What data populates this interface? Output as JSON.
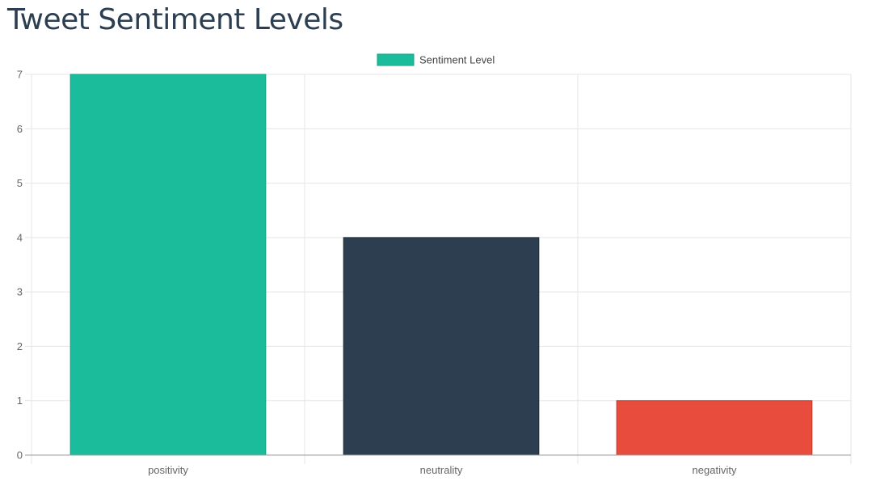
{
  "page": {
    "title": "Tweet Sentiment Levels"
  },
  "chart_data": {
    "type": "bar",
    "categories": [
      "positivity",
      "neutrality",
      "negativity"
    ],
    "series": [
      {
        "name": "Sentiment Level",
        "values": [
          7,
          4,
          1
        ],
        "colors": [
          "#1abc9c",
          "#2c3e50",
          "#e74c3c"
        ],
        "border_colors": [
          "#16a085",
          "#1f2d3a",
          "#c0392b"
        ]
      }
    ],
    "legend": {
      "label": "Sentiment Level",
      "position": "top-center",
      "color": "#1abc9c",
      "border_color": "#16a085"
    },
    "y_ticks": [
      "0",
      "1",
      "2",
      "3",
      "4",
      "5",
      "6",
      "7"
    ],
    "ylim": [
      0,
      7
    ],
    "xlabel": "",
    "ylabel": "",
    "grid": true,
    "grid_color": "#e5e5e5",
    "axis_color": "#9e9e9e"
  }
}
